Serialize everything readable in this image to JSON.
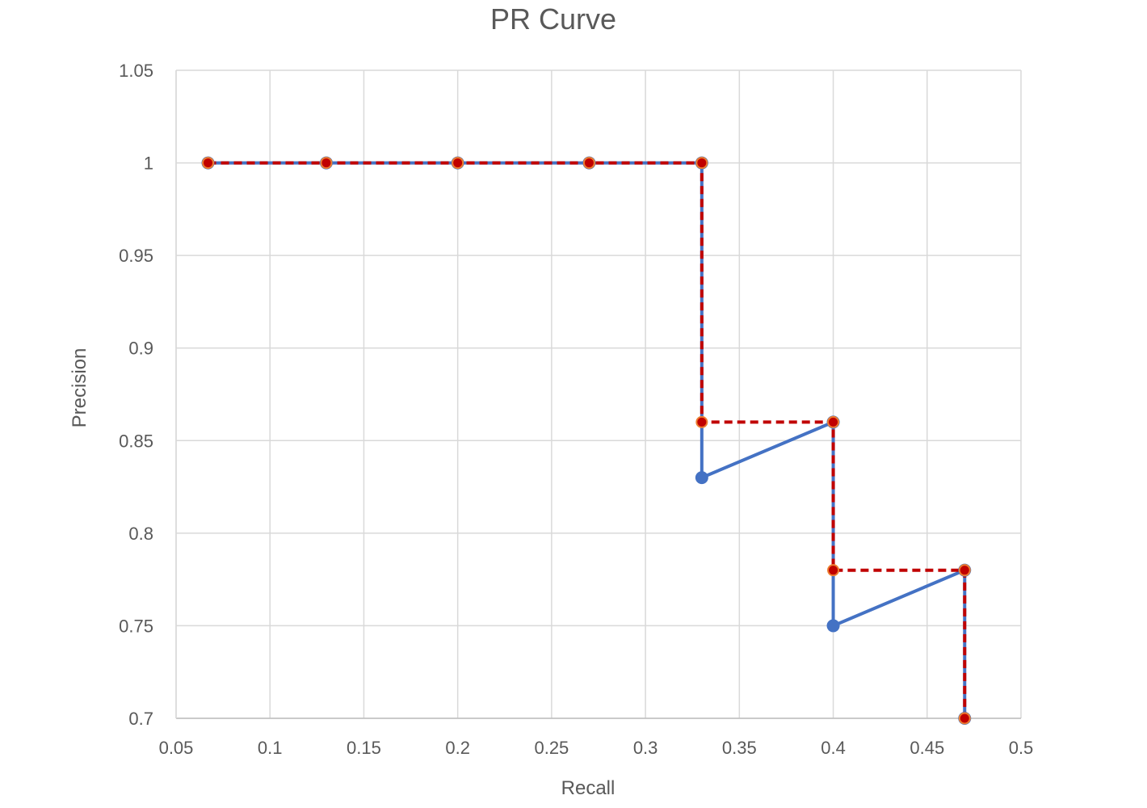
{
  "chart_data": {
    "type": "line",
    "title": "PR Curve",
    "xlabel": "Recall",
    "ylabel": "Precision",
    "xlim": [
      0.05,
      0.5
    ],
    "ylim": [
      0.7,
      1.05
    ],
    "x_ticks": [
      "0.05",
      "0.1",
      "0.15",
      "0.2",
      "0.25",
      "0.3",
      "0.35",
      "0.4",
      "0.45",
      "0.5"
    ],
    "y_ticks": [
      "0.7",
      "0.75",
      "0.8",
      "0.85",
      "0.9",
      "0.95",
      "1",
      "1.05"
    ],
    "grid": true,
    "legend": "none",
    "series": [
      {
        "style": "solid",
        "color": "#4472C4",
        "marker_color": "#4472C4",
        "points": [
          [
            0.067,
            1.0
          ],
          [
            0.13,
            1.0
          ],
          [
            0.2,
            1.0
          ],
          [
            0.27,
            1.0
          ],
          [
            0.33,
            1.0
          ],
          [
            0.33,
            0.83
          ],
          [
            0.4,
            0.86
          ],
          [
            0.4,
            0.75
          ],
          [
            0.47,
            0.78
          ],
          [
            0.47,
            0.7
          ]
        ]
      },
      {
        "style": "dashed",
        "color": "#C00000",
        "marker_color": "#C00000",
        "marker_edge": "#ED7D31",
        "points": [
          [
            0.067,
            1.0
          ],
          [
            0.13,
            1.0
          ],
          [
            0.2,
            1.0
          ],
          [
            0.27,
            1.0
          ],
          [
            0.33,
            1.0
          ],
          [
            0.33,
            0.86
          ],
          [
            0.4,
            0.86
          ],
          [
            0.4,
            0.78
          ],
          [
            0.47,
            0.78
          ],
          [
            0.47,
            0.7
          ]
        ]
      }
    ]
  }
}
